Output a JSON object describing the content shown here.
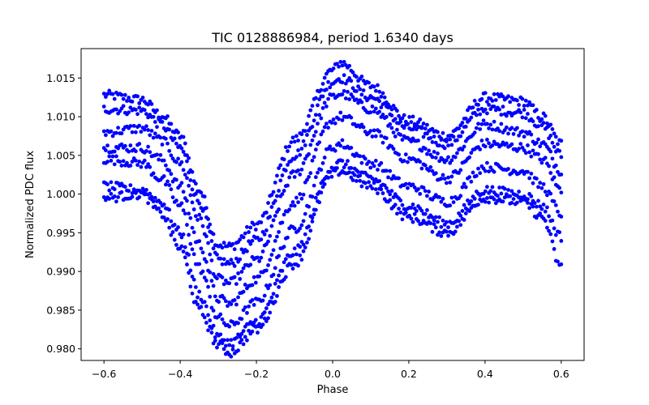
{
  "chart_data": {
    "type": "scatter",
    "title": "TIC 0128886984, period 1.6340 days",
    "xlabel": "Phase",
    "ylabel": "Normalized PDC flux",
    "xlim": [
      -0.66,
      0.66
    ],
    "ylim": [
      0.9785,
      1.0188
    ],
    "xticks": [
      -0.6,
      -0.4,
      -0.2,
      0.0,
      0.2,
      0.4,
      0.6
    ],
    "xtick_labels": [
      "−0.6",
      "−0.4",
      "−0.2",
      "0.0",
      "0.2",
      "0.4",
      "0.6"
    ],
    "yticks": [
      0.98,
      0.985,
      0.99,
      0.995,
      1.0,
      1.005,
      1.01,
      1.015
    ],
    "ytick_labels": [
      "0.980",
      "0.985",
      "0.990",
      "0.995",
      "1.000",
      "1.005",
      "1.010",
      "1.015"
    ],
    "grid": false,
    "marker_color": "#0000ff",
    "phase_range": [
      -0.6,
      0.6
    ],
    "series": [
      {
        "x": [
          -0.6,
          -0.5,
          -0.45,
          -0.4,
          -0.35,
          -0.3,
          -0.27,
          -0.2,
          -0.1,
          0.0,
          0.02,
          0.1,
          0.2,
          0.3,
          0.4,
          0.5,
          0.55,
          0.6
        ],
        "y": [
          1.0128,
          1.0122,
          1.0102,
          1.0075,
          1.0005,
          0.9935,
          0.9932,
          0.996,
          1.007,
          1.016,
          1.017,
          1.014,
          1.0095,
          1.0075,
          1.0125,
          1.012,
          1.01,
          1.0065
        ]
      },
      {
        "x": [
          -0.6,
          -0.5,
          -0.45,
          -0.4,
          -0.35,
          -0.3,
          -0.27,
          -0.2,
          -0.1,
          0.0,
          0.02,
          0.1,
          0.2,
          0.3,
          0.4,
          0.5,
          0.55,
          0.6
        ],
        "y": [
          1.011,
          1.0108,
          1.009,
          1.006,
          0.999,
          0.9915,
          0.991,
          0.994,
          1.005,
          1.0145,
          1.015,
          1.0125,
          1.0085,
          1.0065,
          1.011,
          1.0105,
          1.0088,
          1.005
        ]
      },
      {
        "x": [
          -0.6,
          -0.5,
          -0.45,
          -0.4,
          -0.35,
          -0.3,
          -0.27,
          -0.2,
          -0.1,
          0.0,
          0.02,
          0.1,
          0.2,
          0.3,
          0.4,
          0.5,
          0.55,
          0.6
        ],
        "y": [
          1.008,
          1.0085,
          1.007,
          1.004,
          0.9968,
          0.989,
          0.9885,
          0.9915,
          1.0025,
          1.0125,
          1.013,
          1.011,
          1.0068,
          1.0045,
          1.009,
          1.008,
          1.0065,
          1.003
        ]
      },
      {
        "x": [
          -0.6,
          -0.5,
          -0.45,
          -0.4,
          -0.35,
          -0.3,
          -0.27,
          -0.2,
          -0.1,
          0.0,
          0.02,
          0.1,
          0.2,
          0.3,
          0.4,
          0.5,
          0.55,
          0.6
        ],
        "y": [
          1.006,
          1.006,
          1.0045,
          1.001,
          0.9935,
          0.9865,
          0.9858,
          0.989,
          0.999,
          1.0095,
          1.01,
          1.008,
          1.0045,
          1.002,
          1.0065,
          1.006,
          1.0045,
          1.0005
        ]
      },
      {
        "x": [
          -0.6,
          -0.5,
          -0.45,
          -0.4,
          -0.35,
          -0.3,
          -0.27,
          -0.2,
          -0.1,
          0.0,
          0.02,
          0.1,
          0.2,
          0.3,
          0.4,
          0.5,
          0.55,
          0.6
        ],
        "y": [
          1.0045,
          1.004,
          1.002,
          0.9985,
          0.9905,
          0.984,
          0.983,
          0.986,
          0.9955,
          1.006,
          1.0065,
          1.004,
          1.001,
          0.999,
          1.0035,
          1.003,
          1.001,
          0.9975
        ]
      },
      {
        "x": [
          -0.6,
          -0.5,
          -0.45,
          -0.4,
          -0.35,
          -0.3,
          -0.27,
          -0.2,
          -0.1,
          0.0,
          0.02,
          0.1,
          0.2,
          0.3,
          0.4,
          0.5,
          0.55,
          0.6
        ],
        "y": [
          1.001,
          1.0005,
          0.999,
          0.995,
          0.987,
          0.9815,
          0.9808,
          0.9835,
          0.9925,
          1.0035,
          1.004,
          1.002,
          0.9985,
          0.9962,
          1.0005,
          1.0,
          0.9985,
          0.9945
        ]
      },
      {
        "x": [
          -0.6,
          -0.5,
          -0.45,
          -0.4,
          -0.35,
          -0.3,
          -0.27,
          -0.2,
          -0.1,
          0.0,
          0.02,
          0.1,
          0.2,
          0.3,
          0.4,
          0.5,
          0.55,
          0.6
        ],
        "y": [
          0.9995,
          1.0,
          0.9975,
          0.993,
          0.985,
          0.9805,
          0.9795,
          0.9825,
          0.991,
          1.0025,
          1.003,
          1.001,
          0.997,
          0.995,
          0.9995,
          0.999,
          0.997,
          0.9905
        ]
      }
    ]
  }
}
